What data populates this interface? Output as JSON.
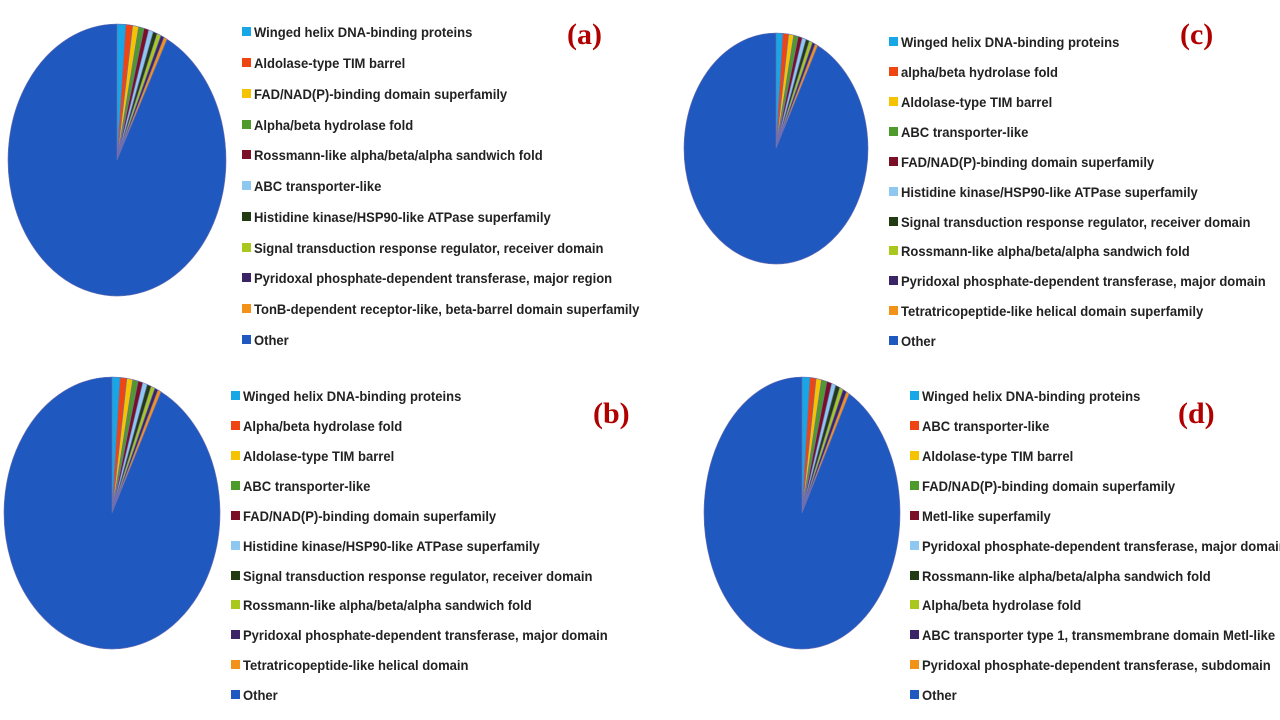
{
  "colors": {
    "label": "#b00000",
    "text": "#222222",
    "pie_edge": "#6f6fb0"
  },
  "chart_data": [
    {
      "type": "pie",
      "panel_label": "(a)",
      "legend_placement": "right",
      "categories": [
        "Winged helix DNA-binding proteins",
        "Aldolase-type TIM barrel",
        "FAD/NAD(P)-binding domain superfamily",
        "Alpha/beta hydrolase fold",
        "Rossmann-like alpha/beta/alpha sandwich fold",
        "ABC transporter-like",
        "Histidine kinase/HSP90-like ATPase superfamily",
        "Signal transduction response regulator, receiver domain",
        "Pyridoxal phosphate-dependent transferase, major region",
        "TonB-dependent receptor-like, beta-barrel domain superfamily",
        "Other"
      ],
      "values": [
        1.3,
        1.0,
        0.9,
        0.8,
        0.7,
        0.7,
        0.6,
        0.6,
        0.5,
        0.5,
        92.4
      ],
      "colors": [
        "#17a7e6",
        "#ee4513",
        "#f5c300",
        "#4e9a2a",
        "#7a0f25",
        "#8ec8f0",
        "#233b12",
        "#a8c81e",
        "#3b2466",
        "#f29218",
        "#1f58bf"
      ]
    },
    {
      "type": "pie",
      "panel_label": "(b)",
      "legend_placement": "right",
      "categories": [
        "Winged helix DNA-binding proteins",
        "Alpha/beta hydrolase fold",
        "Aldolase-type TIM barrel",
        "ABC transporter-like",
        "FAD/NAD(P)-binding domain superfamily",
        "Histidine kinase/HSP90-like ATPase superfamily",
        "Signal transduction response regulator, receiver domain",
        "Rossmann-like alpha/beta/alpha sandwich fold",
        "Pyridoxal phosphate-dependent transferase, major domain",
        "Tetratricopeptide-like helical domain",
        "Other"
      ],
      "values": [
        1.2,
        1.0,
        0.9,
        0.8,
        0.7,
        0.7,
        0.6,
        0.6,
        0.5,
        0.5,
        92.5
      ],
      "colors": [
        "#17a7e6",
        "#ee4513",
        "#f5c300",
        "#4e9a2a",
        "#7a0f25",
        "#8ec8f0",
        "#233b12",
        "#a8c81e",
        "#3b2466",
        "#f29218",
        "#1f58bf"
      ]
    },
    {
      "type": "pie",
      "panel_label": "(c)",
      "legend_placement": "right",
      "categories": [
        "Winged helix DNA-binding proteins",
        "alpha/beta hydrolase fold",
        "Aldolase-type TIM barrel",
        "ABC transporter-like",
        "FAD/NAD(P)-binding domain superfamily",
        "Histidine kinase/HSP90-like ATPase superfamily",
        "Signal transduction response regulator, receiver domain",
        "Rossmann-like alpha/beta/alpha sandwich fold",
        "Pyridoxal phosphate-dependent transferase, major domain",
        "Tetratricopeptide-like helical domain superfamily",
        "Other"
      ],
      "values": [
        1.2,
        1.0,
        0.9,
        0.8,
        0.7,
        0.7,
        0.6,
        0.6,
        0.5,
        0.5,
        92.5
      ],
      "colors": [
        "#17a7e6",
        "#ee4513",
        "#f5c300",
        "#4e9a2a",
        "#7a0f25",
        "#8ec8f0",
        "#233b12",
        "#a8c81e",
        "#3b2466",
        "#f29218",
        "#1f58bf"
      ]
    },
    {
      "type": "pie",
      "panel_label": "(d)",
      "legend_placement": "right",
      "categories": [
        "Winged helix DNA-binding proteins",
        "ABC transporter-like",
        "Aldolase-type TIM barrel",
        "FAD/NAD(P)-binding domain superfamily",
        "Metl-like superfamily",
        "Pyridoxal phosphate-dependent transferase, major domain",
        "Rossmann-like alpha/beta/alpha sandwich fold",
        " Alpha/beta hydrolase fold",
        "ABC transporter type 1, transmembrane domain Metl-like",
        "Pyridoxal phosphate-dependent transferase, subdomain",
        "Other"
      ],
      "values": [
        1.3,
        1.0,
        0.9,
        0.9,
        0.8,
        0.7,
        0.7,
        0.6,
        0.6,
        0.5,
        92.0
      ],
      "colors": [
        "#17a7e6",
        "#ee4513",
        "#f5c300",
        "#4e9a2a",
        "#7a0f25",
        "#8ec8f0",
        "#233b12",
        "#a8c81e",
        "#3b2466",
        "#f29218",
        "#1f58bf"
      ]
    }
  ]
}
